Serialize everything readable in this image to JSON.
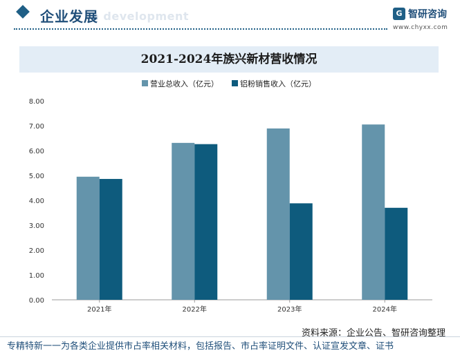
{
  "header": {
    "section_title": "企业发展",
    "section_subtitle": "e development",
    "brand_name": "智研咨询",
    "brand_url": "www.chyxx.com"
  },
  "chart_data": {
    "type": "bar",
    "title": "2021-2024年族兴新材营收情况",
    "categories": [
      "2021年",
      "2022年",
      "2023年",
      "2024年"
    ],
    "series": [
      {
        "name": "营业总收入（亿元）",
        "values": [
          4.95,
          6.31,
          6.89,
          7.05
        ],
        "color": "#6494ab"
      },
      {
        "name": "铝粉销售收入（亿元）",
        "values": [
          4.86,
          6.26,
          3.88,
          3.7
        ],
        "color": "#0e5b7d"
      }
    ],
    "ylim": [
      0,
      8
    ],
    "yticks": [
      "0.00",
      "1.00",
      "2.00",
      "3.00",
      "4.00",
      "5.00",
      "6.00",
      "7.00",
      "8.00"
    ],
    "grid": false,
    "legend": "top-center"
  },
  "footer": {
    "source": "资料来源：企业公告、智研咨询整理",
    "slogan": "专精特新一一为各类企业提供市占率相关材料，包括报告、市占率证明文件、认证宣发文章、证书"
  }
}
